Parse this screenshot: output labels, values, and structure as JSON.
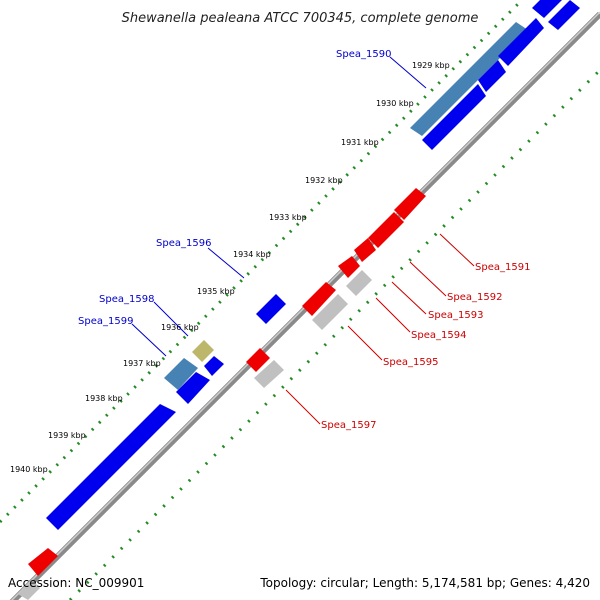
{
  "title": "Shewanella pealeana ATCC 700345, complete genome",
  "footer": {
    "accession": "Accession: NC_009901",
    "summary": "Topology: circular; Length: 5,174,581 bp; Genes: 4,420"
  },
  "colors": {
    "forward_gene": "#0000ee",
    "forward_gene_alt": "#4682b4",
    "forward_gene_other": "#bdb76b",
    "reverse_gene": "#ee0000",
    "reverse_gene_alt": "#c0c0c0",
    "backbone": "#808080",
    "ticks": "#228b22",
    "forward_label": "#0000cc",
    "reverse_label": "#cc0000"
  },
  "kbp_ticks": [
    "1929 kbp",
    "1930 kbp",
    "1931 kbp",
    "1932 kbp",
    "1933 kbp",
    "1934 kbp",
    "1935 kbp",
    "1936 kbp",
    "1937 kbp",
    "1938 kbp",
    "1939 kbp",
    "1940 kbp"
  ],
  "gene_labels": {
    "forward": [
      "Spea_1590",
      "Spea_1596",
      "Spea_1598",
      "Spea_1599"
    ],
    "reverse": [
      "Spea_1591",
      "Spea_1592",
      "Spea_1593",
      "Spea_1594",
      "Spea_1595",
      "Spea_1597"
    ]
  }
}
